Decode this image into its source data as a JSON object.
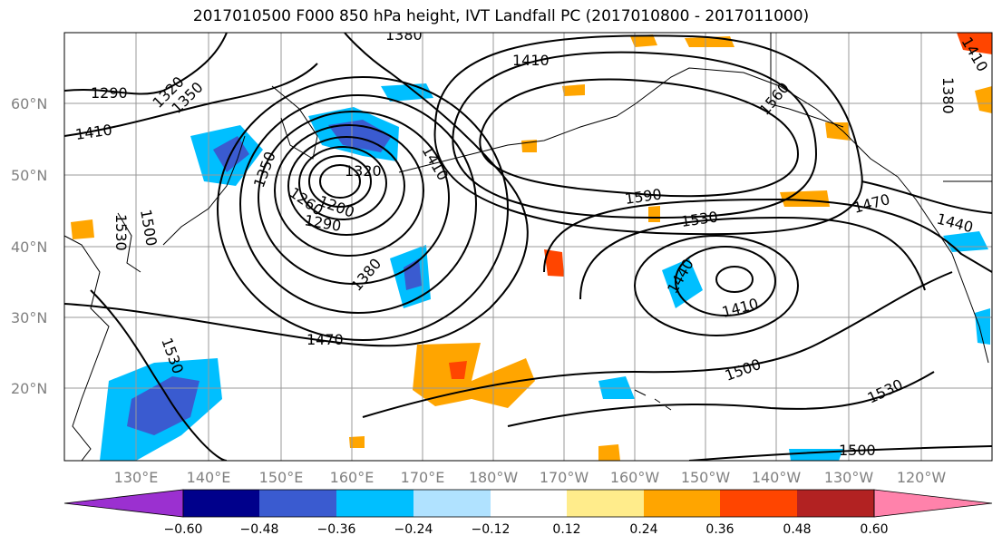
{
  "title": "2017010500 F000 850 hPa height, IVT Landfall PC (2017010800 - 2017011000)",
  "lat_labels": [
    "60°N",
    "50°N",
    "40°N",
    "30°N",
    "20°N"
  ],
  "lon_labels": [
    "130°E",
    "140°E",
    "150°E",
    "160°E",
    "170°E",
    "180°W",
    "170°W",
    "160°W",
    "150°W",
    "140°W",
    "130°W",
    "120°W"
  ],
  "contour_labels": {
    "c1": "1290",
    "c2": "1320",
    "c3": "1350",
    "c4": "1410",
    "c5": "1380",
    "c6": "1350",
    "c7": "1320",
    "c8": "1260",
    "c9": "1200",
    "c10": "1290",
    "c11": "1380",
    "c12": "1470",
    "c13": "1410",
    "c14": "1440",
    "c15": "1410",
    "c16": "1590",
    "c17": "1530",
    "c18": "1560",
    "c19": "1470",
    "c20": "1440",
    "c21": "1410",
    "c22": "1500",
    "c23": "1530",
    "c24": "1500",
    "c25": "1530",
    "c26": "1500",
    "c27": "1530",
    "c28": "1410",
    "c29": "1380"
  },
  "colorbar": {
    "ticks": [
      "−0.60",
      "−0.48",
      "−0.36",
      "−0.24",
      "−0.12",
      "0.12",
      "0.24",
      "0.36",
      "0.48",
      "0.60"
    ],
    "colors": [
      "#9b30d0",
      "#00008b",
      "#3a5bd0",
      "#00bfff",
      "#b0e2ff",
      "#ffffff",
      "#ffec8b",
      "#ffa500",
      "#ff4500",
      "#b22222",
      "#ff82ab"
    ]
  }
}
